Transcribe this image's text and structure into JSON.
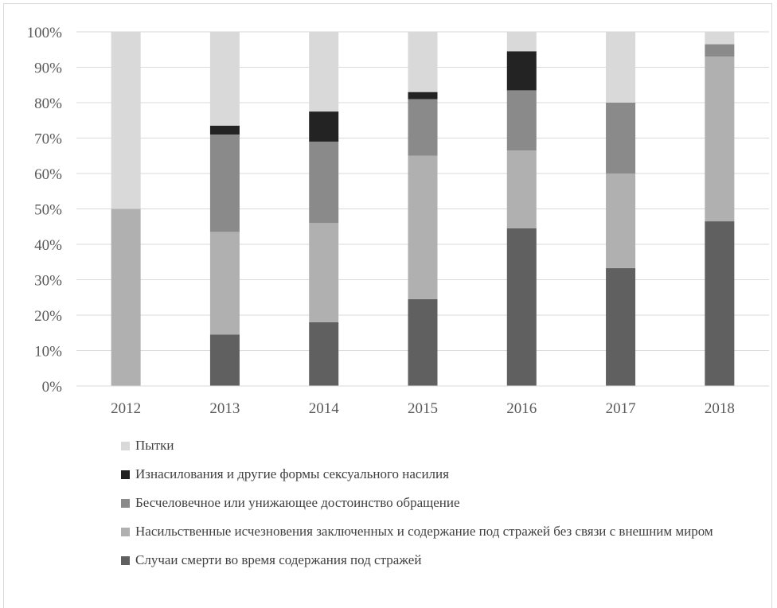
{
  "chart_data": {
    "type": "bar",
    "stacked": true,
    "percent_scale": true,
    "categories": [
      "2012",
      "2013",
      "2014",
      "2015",
      "2016",
      "2017",
      "2018"
    ],
    "y_ticks": [
      "0%",
      "10%",
      "20%",
      "30%",
      "40%",
      "50%",
      "60%",
      "70%",
      "80%",
      "90%",
      "100%"
    ],
    "ylim": [
      0,
      100
    ],
    "grid": true,
    "legend_position": "bottom",
    "series": [
      {
        "name": "Случаи смерти во время содержания под стражей",
        "color": "#606060",
        "values": [
          0,
          14.5,
          18,
          24.5,
          44.5,
          33.3,
          46.5
        ]
      },
      {
        "name": "Насильственные исчезновения заключенных и содержание под стражей без связи с внешним миром",
        "color": "#b0b0b0",
        "values": [
          50,
          29,
          28,
          40.5,
          22,
          26.7,
          46.5
        ]
      },
      {
        "name": "Бесчеловечное или унижающее достоинство обращение",
        "color": "#8a8a8a",
        "values": [
          0,
          27.5,
          23,
          16,
          17,
          20,
          3.5
        ]
      },
      {
        "name": "Изнасилования и другие формы сексуального насилия",
        "color": "#232323",
        "values": [
          0,
          2.5,
          8.5,
          2,
          11,
          0,
          0
        ]
      },
      {
        "name": "Пытки",
        "color": "#d9d9d9",
        "values": [
          50,
          26.5,
          22.5,
          17,
          5.5,
          20,
          3.5
        ]
      }
    ]
  },
  "legend_order": [
    4,
    3,
    2,
    1,
    0
  ]
}
